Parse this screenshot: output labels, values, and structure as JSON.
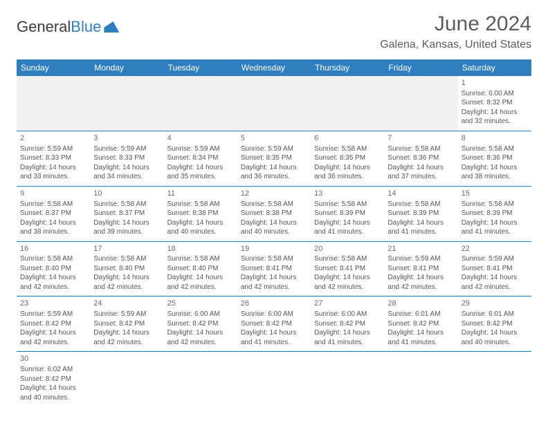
{
  "brand": {
    "text1": "General",
    "text2": "Blue"
  },
  "header": {
    "month_title": "June 2024",
    "location": "Galena, Kansas, United States"
  },
  "style": {
    "accent_color": "#2f7fc0",
    "text_color": "#555555",
    "header_text_color": "#ffffff",
    "background": "#ffffff",
    "empty_week_bg": "#f1f1f1",
    "month_title_fontsize": 30,
    "body_fontsize": 10
  },
  "weekdays": [
    "Sunday",
    "Monday",
    "Tuesday",
    "Wednesday",
    "Thursday",
    "Friday",
    "Saturday"
  ],
  "calendar": {
    "first_weekday_index": 6,
    "days": [
      {
        "n": 1,
        "sunrise": "6:00 AM",
        "sunset": "8:32 PM",
        "daylight": "14 hours and 32 minutes."
      },
      {
        "n": 2,
        "sunrise": "5:59 AM",
        "sunset": "8:33 PM",
        "daylight": "14 hours and 33 minutes."
      },
      {
        "n": 3,
        "sunrise": "5:59 AM",
        "sunset": "8:33 PM",
        "daylight": "14 hours and 34 minutes."
      },
      {
        "n": 4,
        "sunrise": "5:59 AM",
        "sunset": "8:34 PM",
        "daylight": "14 hours and 35 minutes."
      },
      {
        "n": 5,
        "sunrise": "5:59 AM",
        "sunset": "8:35 PM",
        "daylight": "14 hours and 36 minutes."
      },
      {
        "n": 6,
        "sunrise": "5:58 AM",
        "sunset": "8:35 PM",
        "daylight": "14 hours and 36 minutes."
      },
      {
        "n": 7,
        "sunrise": "5:58 AM",
        "sunset": "8:36 PM",
        "daylight": "14 hours and 37 minutes."
      },
      {
        "n": 8,
        "sunrise": "5:58 AM",
        "sunset": "8:36 PM",
        "daylight": "14 hours and 38 minutes."
      },
      {
        "n": 9,
        "sunrise": "5:58 AM",
        "sunset": "8:37 PM",
        "daylight": "14 hours and 38 minutes."
      },
      {
        "n": 10,
        "sunrise": "5:58 AM",
        "sunset": "8:37 PM",
        "daylight": "14 hours and 39 minutes."
      },
      {
        "n": 11,
        "sunrise": "5:58 AM",
        "sunset": "8:38 PM",
        "daylight": "14 hours and 40 minutes."
      },
      {
        "n": 12,
        "sunrise": "5:58 AM",
        "sunset": "8:38 PM",
        "daylight": "14 hours and 40 minutes."
      },
      {
        "n": 13,
        "sunrise": "5:58 AM",
        "sunset": "8:39 PM",
        "daylight": "14 hours and 41 minutes."
      },
      {
        "n": 14,
        "sunrise": "5:58 AM",
        "sunset": "8:39 PM",
        "daylight": "14 hours and 41 minutes."
      },
      {
        "n": 15,
        "sunrise": "5:58 AM",
        "sunset": "8:39 PM",
        "daylight": "14 hours and 41 minutes."
      },
      {
        "n": 16,
        "sunrise": "5:58 AM",
        "sunset": "8:40 PM",
        "daylight": "14 hours and 42 minutes."
      },
      {
        "n": 17,
        "sunrise": "5:58 AM",
        "sunset": "8:40 PM",
        "daylight": "14 hours and 42 minutes."
      },
      {
        "n": 18,
        "sunrise": "5:58 AM",
        "sunset": "8:40 PM",
        "daylight": "14 hours and 42 minutes."
      },
      {
        "n": 19,
        "sunrise": "5:58 AM",
        "sunset": "8:41 PM",
        "daylight": "14 hours and 42 minutes."
      },
      {
        "n": 20,
        "sunrise": "5:58 AM",
        "sunset": "8:41 PM",
        "daylight": "14 hours and 42 minutes."
      },
      {
        "n": 21,
        "sunrise": "5:59 AM",
        "sunset": "8:41 PM",
        "daylight": "14 hours and 42 minutes."
      },
      {
        "n": 22,
        "sunrise": "5:59 AM",
        "sunset": "8:41 PM",
        "daylight": "14 hours and 42 minutes."
      },
      {
        "n": 23,
        "sunrise": "5:59 AM",
        "sunset": "8:42 PM",
        "daylight": "14 hours and 42 minutes."
      },
      {
        "n": 24,
        "sunrise": "5:59 AM",
        "sunset": "8:42 PM",
        "daylight": "14 hours and 42 minutes."
      },
      {
        "n": 25,
        "sunrise": "6:00 AM",
        "sunset": "8:42 PM",
        "daylight": "14 hours and 42 minutes."
      },
      {
        "n": 26,
        "sunrise": "6:00 AM",
        "sunset": "8:42 PM",
        "daylight": "14 hours and 41 minutes."
      },
      {
        "n": 27,
        "sunrise": "6:00 AM",
        "sunset": "8:42 PM",
        "daylight": "14 hours and 41 minutes."
      },
      {
        "n": 28,
        "sunrise": "6:01 AM",
        "sunset": "8:42 PM",
        "daylight": "14 hours and 41 minutes."
      },
      {
        "n": 29,
        "sunrise": "6:01 AM",
        "sunset": "8:42 PM",
        "daylight": "14 hours and 40 minutes."
      },
      {
        "n": 30,
        "sunrise": "6:02 AM",
        "sunset": "8:42 PM",
        "daylight": "14 hours and 40 minutes."
      }
    ]
  },
  "labels": {
    "sunrise": "Sunrise:",
    "sunset": "Sunset:",
    "daylight": "Daylight:"
  }
}
